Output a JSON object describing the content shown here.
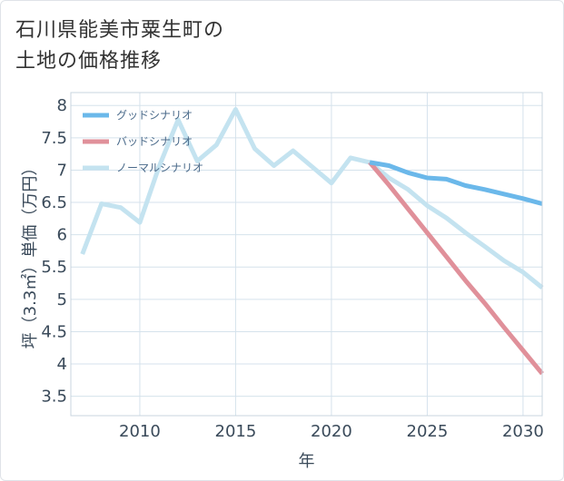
{
  "title": {
    "line1": "石川県能美市粟生町の",
    "line2": "土地の価格推移"
  },
  "chart_data": {
    "type": "line",
    "title": "石川県能美市粟生町の土地の価格推移",
    "xlabel": "年",
    "ylabel": "坪（3.3㎡）単価（万円）",
    "xlim": [
      2006.4,
      2031
    ],
    "ylim": [
      3.2,
      8.2
    ],
    "xticks": [
      2010,
      2015,
      2020,
      2025,
      2030
    ],
    "yticks": [
      3.5,
      4,
      4.5,
      5,
      5.5,
      6,
      6.5,
      7,
      7.5,
      8
    ],
    "grid": true,
    "legend_position": "top-left",
    "series": [
      {
        "name": "グッドシナリオ",
        "color": "#6bb8ea",
        "x": [
          2022,
          2023,
          2024,
          2025,
          2026,
          2027,
          2028,
          2029,
          2030,
          2031
        ],
        "y": [
          7.12,
          7.07,
          6.96,
          6.88,
          6.86,
          6.76,
          6.7,
          6.63,
          6.56,
          6.48
        ]
      },
      {
        "name": "バッドシナリオ",
        "color": "#e0909a",
        "x": [
          2022,
          2023,
          2024,
          2025,
          2026,
          2027,
          2028,
          2029,
          2030,
          2031
        ],
        "y": [
          7.12,
          6.77,
          6.4,
          6.03,
          5.66,
          5.29,
          4.94,
          4.57,
          4.21,
          3.85
        ]
      },
      {
        "name": "ノーマルシナリオ",
        "color": "#c4e3f0",
        "x": [
          2007,
          2008,
          2009,
          2010,
          2011,
          2012,
          2013,
          2014,
          2015,
          2016,
          2017,
          2018,
          2019,
          2020,
          2021,
          2022,
          2023,
          2024,
          2025,
          2026,
          2027,
          2028,
          2029,
          2030,
          2031
        ],
        "y": [
          5.7,
          6.48,
          6.42,
          6.19,
          7.05,
          7.78,
          7.14,
          7.39,
          7.94,
          7.33,
          7.07,
          7.3,
          7.05,
          6.8,
          7.19,
          7.12,
          6.88,
          6.7,
          6.45,
          6.26,
          6.03,
          5.82,
          5.6,
          5.42,
          5.18
        ]
      }
    ]
  }
}
